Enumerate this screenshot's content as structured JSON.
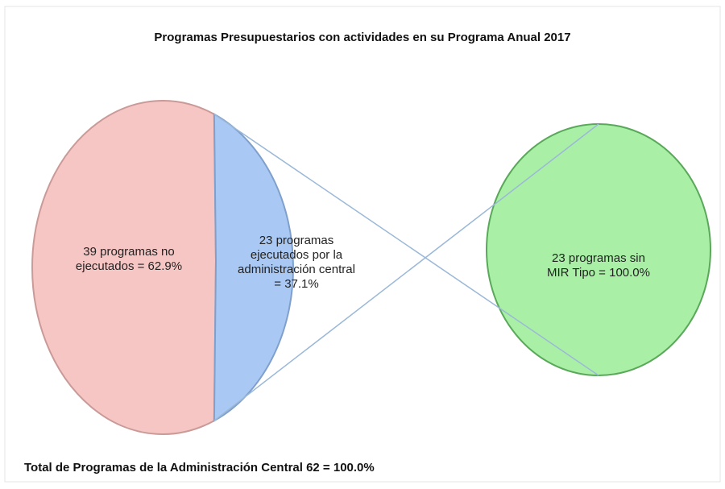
{
  "chart_data": [
    {
      "type": "pie",
      "title": "Programas Presupuestarios con actividades en su Programa Anual 2017",
      "values": [
        62.9,
        37.1
      ],
      "value_labels": [
        "39 programas no ejecutados = 62.9%",
        "23 programas ejecutados por la administración central = 37.1%"
      ],
      "colors": [
        "#f6c6c4",
        "#a9c9f4"
      ],
      "footnote": "Total de Programas de la Administración Central 62 = 100.0%"
    },
    {
      "type": "pie",
      "values": [
        100
      ],
      "value_labels": [
        "23 programas sin MIR Tipo = 100.0%"
      ],
      "colors": [
        "#a9f0a6"
      ]
    }
  ]
}
